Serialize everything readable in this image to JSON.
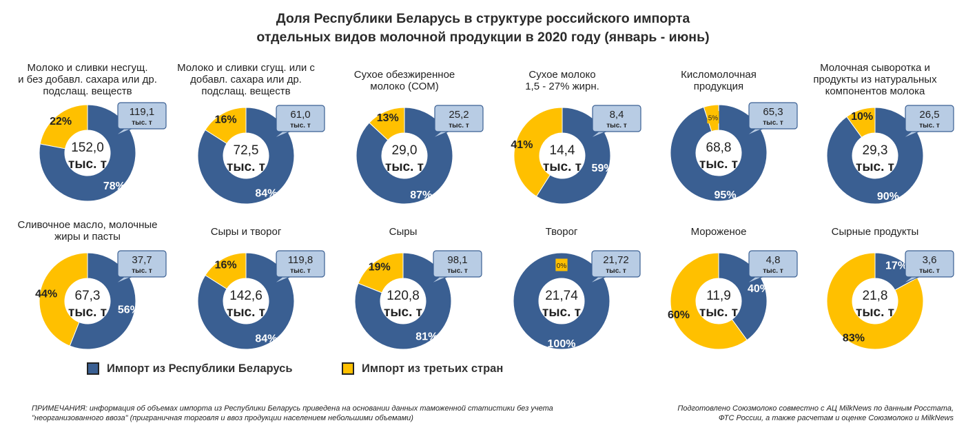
{
  "title": {
    "line1": "Доля Республики Беларусь в структуре российского импорта",
    "line2": "отдельных видов молочной продукции в 2020 году (январь - июнь)"
  },
  "colors": {
    "belarus": "#3a5f92",
    "third": "#ffc000",
    "callout_fill": "#b8cce4",
    "callout_border": "#3a5f92"
  },
  "legend": {
    "belarus": "Импорт из Республики Беларусь",
    "third": "Импорт из третьих стран"
  },
  "notes": {
    "left1": "ПРИМЕЧАНИЯ: информация об объемах импорта из Республики Беларусь приведена на основании данных таможенной статистики без учета",
    "left2": "\"неорганизованного ввоза\" (приграничная торговля и ввоз продукции населением небольшими объемами)",
    "right1": "Подготовлено Союзмолоко совместно с АЦ MilkNews по данным Росстата,",
    "right2": "ФТС России, а также расчетам и оценке Союзмолоко и MilkNews"
  },
  "chart_data": [
    {
      "type": "pie",
      "title": [
        "Молоко и сливки несгущ.",
        "и без добавл. сахара или др.",
        "подслащ. веществ"
      ],
      "total": "152,0",
      "total_unit": "тыс. т",
      "belarus_value": "119,1",
      "belarus_unit": "тыс. т",
      "series": [
        {
          "name": "Импорт из Республики Беларусь",
          "value": 78,
          "label": "78%"
        },
        {
          "name": "Импорт из третьих стран",
          "value": 22,
          "label": "22%"
        }
      ]
    },
    {
      "type": "pie",
      "title": [
        "Молоко и сливки сгущ. или с",
        "добавл. сахара или др.",
        "подслащ. веществ"
      ],
      "total": "72,5",
      "total_unit": "тыс. т",
      "belarus_value": "61,0",
      "belarus_unit": "тыс. т",
      "series": [
        {
          "name": "Импорт из Республики Беларусь",
          "value": 84,
          "label": "84%"
        },
        {
          "name": "Импорт из третьих стран",
          "value": 16,
          "label": "16%"
        }
      ]
    },
    {
      "type": "pie",
      "title": [
        "Сухое обезжиренное",
        "молоко (СОМ)"
      ],
      "total": "29,0",
      "total_unit": "тыс. т",
      "belarus_value": "25,2",
      "belarus_unit": "тыс. т",
      "series": [
        {
          "name": "Импорт из Республики Беларусь",
          "value": 87,
          "label": "87%"
        },
        {
          "name": "Импорт из третьих стран",
          "value": 13,
          "label": "13%"
        }
      ]
    },
    {
      "type": "pie",
      "title": [
        "Сухое молоко",
        "1,5 - 27% жирн."
      ],
      "total": "14,4",
      "total_unit": "тыс. т",
      "belarus_value": "8,4",
      "belarus_unit": "тыс. т",
      "series": [
        {
          "name": "Импорт из Республики Беларусь",
          "value": 59,
          "label": "59%"
        },
        {
          "name": "Импорт из третьих стран",
          "value": 41,
          "label": "41%"
        }
      ]
    },
    {
      "type": "pie",
      "title": [
        "Кисломолочная",
        "продукция"
      ],
      "total": "68,8",
      "total_unit": "тыс. т",
      "belarus_value": "65,3",
      "belarus_unit": "тыс. т",
      "series": [
        {
          "name": "Импорт из Республики Беларусь",
          "value": 95,
          "label": "95%"
        },
        {
          "name": "Импорт из третьих стран",
          "value": 5,
          "label": "5%"
        }
      ]
    },
    {
      "type": "pie",
      "title": [
        "Молочная сыворотка и",
        "продукты из натуральных",
        "компонентов  молока"
      ],
      "total": "29,3",
      "total_unit": "тыс. т",
      "belarus_value": "26,5",
      "belarus_unit": "тыс. т",
      "series": [
        {
          "name": "Импорт из Республики Беларусь",
          "value": 90,
          "label": "90%"
        },
        {
          "name": "Импорт из третьих стран",
          "value": 10,
          "label": "10%"
        }
      ]
    },
    {
      "type": "pie",
      "title": [
        "Сливочное масло, молочные",
        "жиры и пасты"
      ],
      "total": "67,3",
      "total_unit": "тыс. т",
      "belarus_value": "37,7",
      "belarus_unit": "тыс. т",
      "series": [
        {
          "name": "Импорт из Республики Беларусь",
          "value": 56,
          "label": "56%"
        },
        {
          "name": "Импорт из третьих стран",
          "value": 44,
          "label": "44%"
        }
      ]
    },
    {
      "type": "pie",
      "title": [
        "Сыры и творог"
      ],
      "total": "142,6",
      "total_unit": "тыс. т",
      "belarus_value": "119,8",
      "belarus_unit": "тыс. т",
      "series": [
        {
          "name": "Импорт из Республики Беларусь",
          "value": 84,
          "label": "84%"
        },
        {
          "name": "Импорт из третьих стран",
          "value": 16,
          "label": "16%"
        }
      ]
    },
    {
      "type": "pie",
      "title": [
        "Сыры"
      ],
      "total": "120,8",
      "total_unit": "тыс. т",
      "belarus_value": "98,1",
      "belarus_unit": "тыс. т",
      "series": [
        {
          "name": "Импорт из Республики Беларусь",
          "value": 81,
          "label": "81%"
        },
        {
          "name": "Импорт из третьих стран",
          "value": 19,
          "label": "19%"
        }
      ]
    },
    {
      "type": "pie",
      "title": [
        "Творог"
      ],
      "total": "21,74",
      "total_unit": "тыс. т",
      "belarus_value": "21,72",
      "belarus_unit": "тыс. т",
      "series": [
        {
          "name": "Импорт из Республики Беларусь",
          "value": 100,
          "label": "100%"
        },
        {
          "name": "Импорт из третьих стран",
          "value": 0,
          "label": "0%"
        }
      ]
    },
    {
      "type": "pie",
      "title": [
        "Мороженое"
      ],
      "total": "11,9",
      "total_unit": "тыс. т",
      "belarus_value": "4,8",
      "belarus_unit": "тыс. т",
      "series": [
        {
          "name": "Импорт из Республики Беларусь",
          "value": 40,
          "label": "40%"
        },
        {
          "name": "Импорт из третьих стран",
          "value": 60,
          "label": "60%"
        }
      ]
    },
    {
      "type": "pie",
      "title": [
        "Сырные продукты"
      ],
      "total": "21,8",
      "total_unit": "тыс. т",
      "belarus_value": "3,6",
      "belarus_unit": "тыс. т",
      "series": [
        {
          "name": "Импорт из Республики Беларусь",
          "value": 17,
          "label": "17%"
        },
        {
          "name": "Импорт из третьих стран",
          "value": 83,
          "label": "83%"
        }
      ]
    }
  ]
}
